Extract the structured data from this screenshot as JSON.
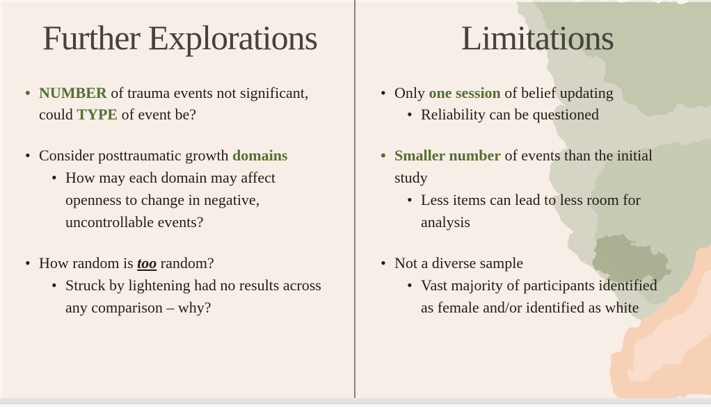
{
  "columns": [
    {
      "title": "Further Explorations",
      "groups": [
        {
          "bullet_accent": true,
          "main": [
            {
              "t": "NUMBER",
              "s": "accent"
            },
            {
              "t": " of trauma events not significant, could "
            },
            {
              "t": "TYPE",
              "s": "accent"
            },
            {
              "t": " of event be?"
            }
          ],
          "subs": []
        },
        {
          "bullet_accent": false,
          "main": [
            {
              "t": "Consider posttraumatic growth "
            },
            {
              "t": "domains",
              "s": "accent"
            }
          ],
          "subs": [
            [
              {
                "t": "How may each domain may affect openness to change in negative, uncontrollable events?"
              }
            ]
          ]
        },
        {
          "bullet_accent": false,
          "main": [
            {
              "t": "How random is "
            },
            {
              "t": "too",
              "s": "emph"
            },
            {
              "t": " random?"
            }
          ],
          "subs": [
            [
              {
                "t": "Struck by lightening had no results across any comparison – why?"
              }
            ]
          ]
        }
      ]
    },
    {
      "title": "Limitations",
      "groups": [
        {
          "bullet_accent": false,
          "main": [
            {
              "t": "Only "
            },
            {
              "t": "one session",
              "s": "accent"
            },
            {
              "t": " of belief updating"
            }
          ],
          "subs": [
            [
              {
                "t": "Reliability can be questioned"
              }
            ]
          ]
        },
        {
          "bullet_accent": true,
          "main": [
            {
              "t": "Smaller number",
              "s": "accent"
            },
            {
              "t": " of events than the initial study"
            }
          ],
          "subs": [
            [
              {
                "t": "Less items can lead to less room for analysis"
              }
            ]
          ]
        },
        {
          "bullet_accent": false,
          "main": [
            {
              "t": "Not a diverse sample"
            }
          ],
          "subs": [
            [
              {
                "t": "Vast majority of participants identified as female and/or identified as white"
              }
            ]
          ]
        }
      ]
    }
  ],
  "colors": {
    "background": "#f7eee7",
    "divider": "#8a7f76",
    "title": "#45413d",
    "body": "#211c17",
    "accent_green": "#556f33",
    "watercolor_green": "#c3c7ae",
    "watercolor_green_light": "#d6d5c5",
    "watercolor_green_dark": "#a2a989",
    "watercolor_peach": "#f7d1b6",
    "watercolor_peach_light": "#fbe3d3"
  }
}
